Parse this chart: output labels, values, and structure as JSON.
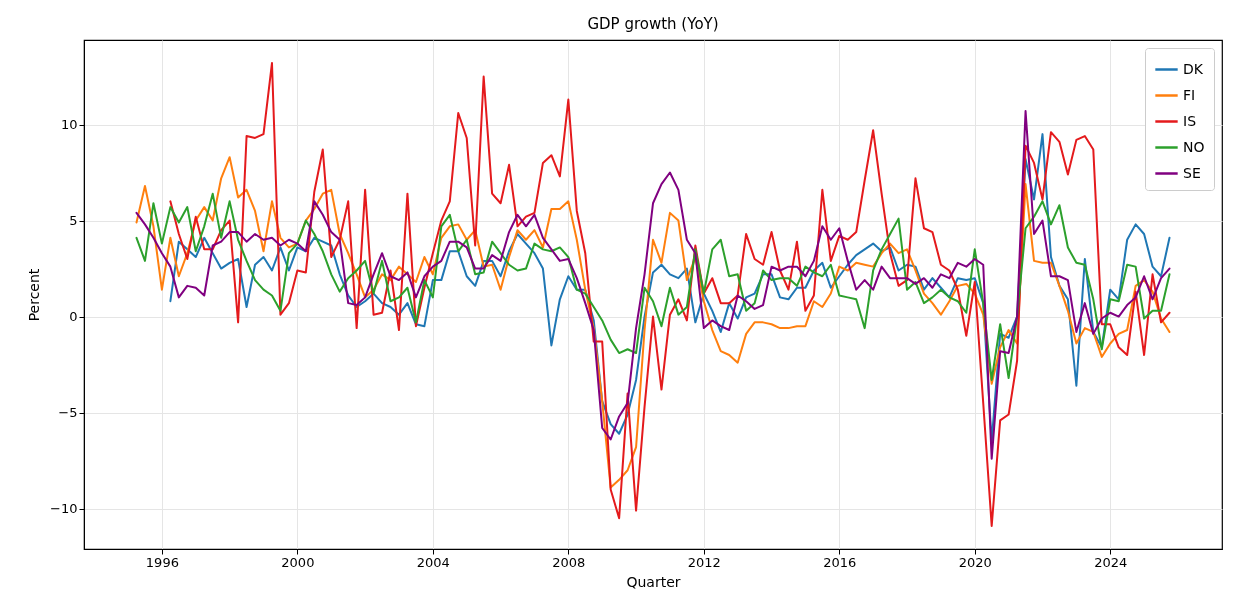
{
  "chart_data": {
    "type": "line",
    "title": "GDP growth (YoY)",
    "xlabel": "Quarter",
    "ylabel": "Percent",
    "x": [
      1995.25,
      1995.5,
      1995.75,
      1996,
      1996.25,
      1996.5,
      1996.75,
      1997,
      1997.25,
      1997.5,
      1997.75,
      1998,
      1998.25,
      1998.5,
      1998.75,
      1999,
      1999.25,
      1999.5,
      1999.75,
      2000,
      2000.25,
      2000.5,
      2000.75,
      2001,
      2001.25,
      2001.5,
      2001.75,
      2002,
      2002.25,
      2002.5,
      2002.75,
      2003,
      2003.25,
      2003.5,
      2003.75,
      2004,
      2004.25,
      2004.5,
      2004.75,
      2005,
      2005.25,
      2005.5,
      2005.75,
      2006,
      2006.25,
      2006.5,
      2006.75,
      2007,
      2007.25,
      2007.5,
      2007.75,
      2008,
      2008.25,
      2008.5,
      2008.75,
      2009,
      2009.25,
      2009.5,
      2009.75,
      2010,
      2010.25,
      2010.5,
      2010.75,
      2011,
      2011.25,
      2011.5,
      2011.75,
      2012,
      2012.25,
      2012.5,
      2012.75,
      2013,
      2013.25,
      2013.5,
      2013.75,
      2014,
      2014.25,
      2014.5,
      2014.75,
      2015,
      2015.25,
      2015.5,
      2015.75,
      2016,
      2016.25,
      2016.5,
      2016.75,
      2017,
      2017.25,
      2017.5,
      2017.75,
      2018,
      2018.25,
      2018.5,
      2018.75,
      2019,
      2019.25,
      2019.5,
      2019.75,
      2020,
      2020.25,
      2020.5,
      2020.75,
      2021,
      2021.25,
      2021.5,
      2021.75,
      2022,
      2022.25,
      2022.5,
      2022.75,
      2023,
      2023.25,
      2023.5,
      2023.75,
      2024,
      2024.25,
      2024.5,
      2024.75,
      2025,
      2025.25,
      2025.5,
      2025.75
    ],
    "series": [
      {
        "name": "DK",
        "color": "#1f77b4",
        "values": [
          null,
          null,
          null,
          null,
          0.8,
          3.9,
          3.5,
          3.1,
          4.1,
          3.3,
          2.5,
          2.8,
          3.0,
          0.5,
          2.7,
          3.1,
          2.4,
          3.6,
          2.4,
          3.6,
          3.4,
          4.1,
          3.9,
          3.7,
          2.2,
          1.1,
          0.5,
          0.8,
          1.2,
          0.7,
          0.5,
          0.1,
          0.7,
          -0.4,
          -0.5,
          1.9,
          1.9,
          3.4,
          3.4,
          2.1,
          1.6,
          2.9,
          2.9,
          2.1,
          3.4,
          4.3,
          3.8,
          3.3,
          2.5,
          -1.5,
          0.9,
          2.1,
          1.4,
          1.4,
          -0.2,
          -4.4,
          -5.6,
          -6.1,
          -5.1,
          -3.3,
          0.0,
          2.3,
          2.7,
          2.2,
          2.0,
          2.5,
          -0.3,
          1.2,
          0.3,
          -0.8,
          0.7,
          -0.1,
          1.0,
          1.2,
          2.2,
          2.2,
          1.0,
          0.9,
          1.5,
          1.5,
          2.4,
          2.8,
          1.5,
          2.1,
          2.7,
          3.2,
          3.5,
          3.8,
          3.4,
          3.6,
          2.4,
          2.7,
          2.6,
          1.4,
          2.0,
          1.5,
          1.0,
          2.0,
          1.9,
          2.0,
          0.7,
          -6.5,
          -0.9,
          -1.1,
          0.0,
          8.2,
          6.1,
          9.5,
          3.1,
          1.6,
          0.9,
          -3.6,
          3.0,
          -0.8,
          -1.6,
          1.4,
          0.9,
          4.0,
          4.8,
          4.3,
          2.6,
          2.1,
          4.1
        ]
      },
      {
        "name": "FI",
        "color": "#ff7f0e",
        "values": [
          4.9,
          6.8,
          4.7,
          1.4,
          4.1,
          2.1,
          3.3,
          5.0,
          5.7,
          5.0,
          7.2,
          8.3,
          6.2,
          6.6,
          5.5,
          3.4,
          6.0,
          4.1,
          3.6,
          3.8,
          5.0,
          5.6,
          6.4,
          6.6,
          4.3,
          3.3,
          2.2,
          1.0,
          1.4,
          2.2,
          1.9,
          2.6,
          2.2,
          1.8,
          3.1,
          2.2,
          4.1,
          4.7,
          4.8,
          4.0,
          4.5,
          2.6,
          2.7,
          1.4,
          3.1,
          4.5,
          4.0,
          4.5,
          3.6,
          5.6,
          5.6,
          6.0,
          4.0,
          1.4,
          -0.6,
          -4.4,
          -8.9,
          -8.5,
          -8.0,
          -6.8,
          -0.7,
          4.0,
          2.8,
          5.4,
          5.0,
          1.9,
          3.1,
          0.8,
          -0.7,
          -1.8,
          -2.0,
          -2.4,
          -0.9,
          -0.3,
          -0.3,
          -0.4,
          -0.6,
          -0.6,
          -0.5,
          -0.5,
          0.8,
          0.5,
          1.2,
          2.6,
          2.4,
          2.8,
          2.7,
          2.6,
          3.3,
          3.8,
          3.3,
          3.5,
          2.4,
          1.2,
          0.7,
          0.1,
          0.8,
          1.6,
          1.7,
          1.2,
          0.1,
          -3.5,
          -1.6,
          -0.7,
          -1.4,
          6.9,
          2.9,
          2.8,
          2.8,
          1.6,
          0.3,
          -1.4,
          -0.6,
          -0.8,
          -2.1,
          -1.4,
          -0.9,
          -0.7,
          1.6,
          1.9,
          1.3,
          -0.1,
          -0.8
        ]
      },
      {
        "name": "IS",
        "color": "#e41a1c",
        "values": [
          null,
          null,
          null,
          null,
          6.0,
          4.3,
          3.0,
          5.2,
          3.5,
          3.5,
          4.5,
          5.0,
          -0.3,
          9.4,
          9.3,
          9.5,
          13.2,
          0.1,
          0.7,
          2.4,
          2.3,
          6.5,
          8.7,
          3.1,
          4.0,
          6.0,
          -0.6,
          6.6,
          0.1,
          0.2,
          2.4,
          -0.7,
          6.4,
          -0.5,
          1.5,
          3.3,
          5.0,
          6.0,
          10.6,
          9.3,
          3.7,
          12.5,
          6.4,
          5.9,
          7.9,
          4.7,
          5.2,
          5.4,
          8.0,
          8.4,
          7.3,
          11.3,
          5.5,
          3.3,
          -1.3,
          -1.3,
          -9.0,
          -10.5,
          -4.0,
          -10.1,
          -4.7,
          0.0,
          -3.8,
          0.1,
          0.9,
          -0.2,
          3.7,
          1.2,
          2.0,
          0.7,
          0.7,
          1.1,
          4.3,
          3.0,
          2.7,
          4.4,
          2.4,
          1.4,
          3.9,
          0.3,
          1.1,
          6.6,
          2.9,
          4.2,
          4.0,
          4.4,
          7.1,
          9.7,
          6.4,
          3.3,
          1.6,
          1.9,
          7.2,
          4.6,
          4.4,
          2.7,
          2.4,
          1.4,
          -1.0,
          1.8,
          -4.5,
          -10.9,
          -5.4,
          -5.1,
          -2.3,
          8.9,
          8.0,
          6.1,
          9.6,
          9.1,
          7.4,
          9.2,
          9.4,
          8.7,
          -0.4,
          -0.4,
          -1.6,
          -2.0,
          1.3,
          -2.0,
          2.2,
          -0.3,
          0.2
        ]
      },
      {
        "name": "NO",
        "color": "#2ca02c",
        "values": [
          4.1,
          2.9,
          5.9,
          3.8,
          5.7,
          4.9,
          5.7,
          3.4,
          4.7,
          6.4,
          4.1,
          6.0,
          4.0,
          2.9,
          1.9,
          1.4,
          1.1,
          0.3,
          3.3,
          3.8,
          5.0,
          4.3,
          3.4,
          2.2,
          1.3,
          2.0,
          2.4,
          2.9,
          1.2,
          2.9,
          0.8,
          1.0,
          1.5,
          -0.3,
          1.9,
          1.0,
          4.7,
          5.3,
          3.4,
          4.0,
          2.2,
          2.3,
          3.9,
          3.3,
          2.7,
          2.4,
          2.5,
          3.8,
          3.5,
          3.4,
          3.6,
          3.1,
          1.4,
          1.2,
          0.5,
          -0.2,
          -1.2,
          -1.9,
          -1.7,
          -1.9,
          1.5,
          0.8,
          -0.5,
          1.5,
          0.1,
          0.5,
          3.5,
          1.2,
          3.5,
          4.0,
          2.1,
          2.2,
          0.3,
          0.7,
          2.4,
          1.9,
          2.0,
          2.0,
          1.6,
          2.6,
          2.3,
          2.1,
          2.7,
          1.1,
          1.0,
          0.9,
          -0.6,
          2.4,
          3.5,
          4.3,
          5.1,
          1.4,
          1.8,
          0.7,
          1.0,
          1.4,
          1.0,
          0.8,
          0.2,
          3.5,
          0.7,
          -3.3,
          -0.4,
          -3.2,
          0.0,
          4.6,
          5.2,
          6.0,
          4.8,
          5.8,
          3.6,
          2.8,
          2.7,
          0.9,
          -1.7,
          0.9,
          0.8,
          2.7,
          2.6,
          -0.1,
          0.3,
          0.3,
          2.2
        ]
      },
      {
        "name": "SE",
        "color": "#800080",
        "values": [
          5.4,
          4.8,
          4.1,
          3.3,
          2.6,
          1.0,
          1.6,
          1.5,
          1.1,
          3.7,
          3.9,
          4.4,
          4.4,
          3.9,
          4.3,
          4.0,
          4.1,
          3.7,
          4.0,
          3.8,
          3.4,
          6.0,
          5.3,
          4.4,
          4.0,
          0.7,
          0.6,
          1.0,
          2.2,
          3.3,
          2.1,
          1.9,
          2.3,
          1.0,
          2.1,
          2.6,
          2.9,
          3.9,
          3.9,
          3.6,
          2.5,
          2.5,
          3.2,
          2.9,
          4.4,
          5.3,
          4.7,
          5.3,
          4.1,
          3.5,
          2.9,
          3.0,
          2.0,
          0.7,
          -0.7,
          -5.8,
          -6.4,
          -5.2,
          -4.5,
          -0.6,
          2.2,
          5.9,
          6.9,
          7.5,
          6.6,
          4.0,
          3.3,
          -0.6,
          -0.2,
          -0.5,
          -0.7,
          1.1,
          0.8,
          0.4,
          0.6,
          2.6,
          2.4,
          2.6,
          2.6,
          2.1,
          2.9,
          4.7,
          4.0,
          4.6,
          2.9,
          1.4,
          1.9,
          1.4,
          2.6,
          2.0,
          2.0,
          2.0,
          1.7,
          2.0,
          1.5,
          2.2,
          2.0,
          2.8,
          2.6,
          3.0,
          2.7,
          -7.4,
          -1.8,
          -1.9,
          0.0,
          10.7,
          4.3,
          5.0,
          2.1,
          2.1,
          1.9,
          -0.8,
          0.7,
          -0.9,
          -0.1,
          0.2,
          0.0,
          0.6,
          1.0,
          2.1,
          0.9,
          2.0,
          2.5
        ]
      }
    ],
    "xlim": [
      1993.7,
      2027.3
    ],
    "xticks": [
      1996,
      2000,
      2004,
      2008,
      2012,
      2016,
      2020,
      2024
    ],
    "ylim": [
      -12.1,
      14.4
    ],
    "yticks": [
      -10,
      -5,
      0,
      5,
      10
    ],
    "grid": true,
    "legend": "top right",
    "line_style": "solid"
  }
}
